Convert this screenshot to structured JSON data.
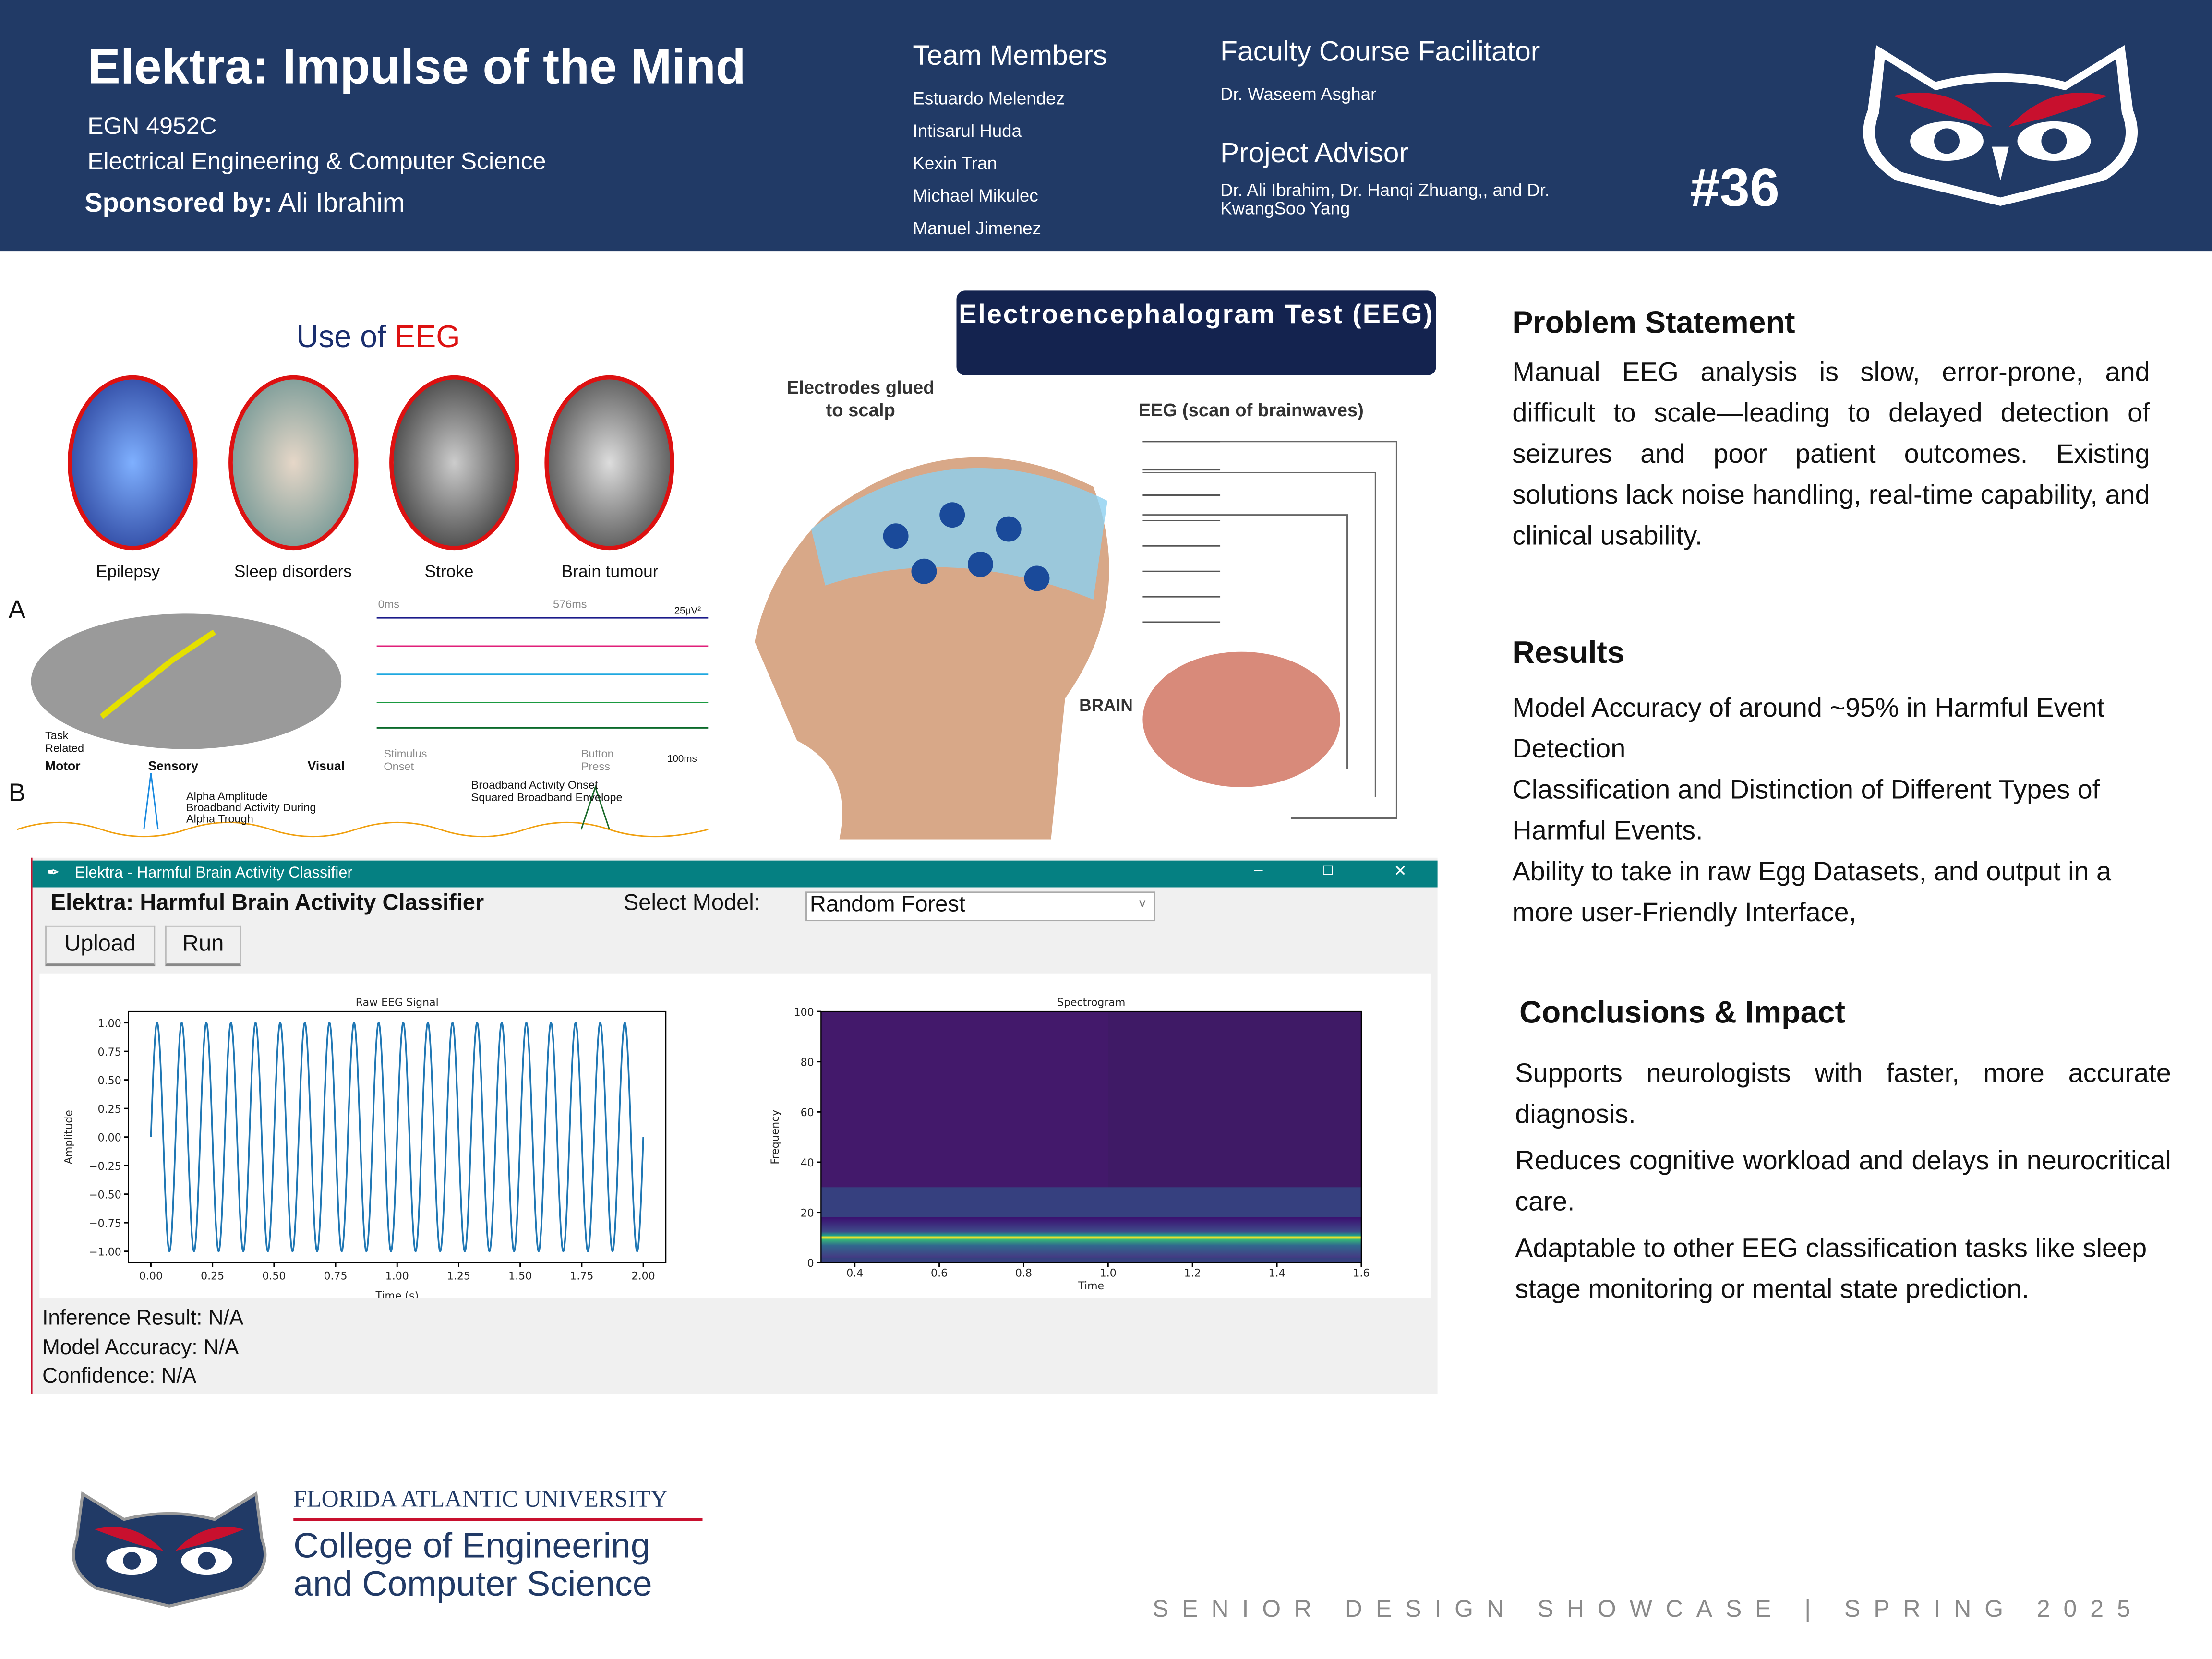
{
  "header": {
    "title": "Elektra: Impulse of the Mind",
    "course": "EGN 4952C",
    "department": "Electrical Engineering & Computer Science",
    "sponsor_label": "Sponsored by:",
    "sponsor_name": "Ali Ibrahim",
    "team_heading": "Team Members",
    "team": [
      "Estuardo Melendez",
      "Intisarul Huda",
      "Kexin Tran",
      "Michael Mikulec",
      "Manuel Jimenez"
    ],
    "facilitator_heading": "Faculty Course Facilitator",
    "facilitator": "Dr. Waseem Asghar",
    "advisor_heading": "Project Advisor",
    "advisor_line1": "Dr. Ali Ibrahim, Dr. Hanqi Zhuang,, and  Dr.",
    "advisor_line2": "KwangSoo Yang",
    "project_number": "#36",
    "bg_color": "#213a66"
  },
  "eeg_uses": {
    "title_prefix": "Use of ",
    "title_accent": "EEG",
    "items": [
      "Epilepsy",
      "Sleep disorders",
      "Stroke",
      "Brain tumour"
    ],
    "panel_a": "A",
    "panel_b": "B",
    "labels": {
      "t0": "0ms",
      "t1": "576ms",
      "scale": "25μV²",
      "stimulus": "Stimulus Onset",
      "button": "Button Press",
      "ms100": "100ms",
      "task": "Task Related",
      "motor": "Motor",
      "sensory": "Sensory",
      "visual": "Visual",
      "alpha": "Alpha Amplitude",
      "broadband": "Broadband Activity During Alpha Trough",
      "onset": "Broadband Activity Onset",
      "envelope": "Squared Broadband Envelope"
    }
  },
  "eeg_test": {
    "title": "Electroencephalogram Test (EEG)",
    "electrodes": "Electrodes glued to scalp",
    "scan": "EEG (scan of brainwaves)",
    "brain": "BRAIN"
  },
  "app": {
    "window_title": "Elektra - Harmful Brain Activity Classifier",
    "heading": "Elektra: Harmful Brain Activity Classifier",
    "select_label": "Select Model:",
    "model_value": "Random Forest",
    "upload": "Upload",
    "run": "Run",
    "inference": "Inference Result: N/A",
    "accuracy": "Model Accuracy: N/A",
    "confidence": "Confidence: N/A",
    "titlebar_color": "#058082"
  },
  "chart_data": [
    {
      "type": "line",
      "title": "Raw EEG Signal",
      "xlabel": "Time (s)",
      "ylabel": "Amplitude",
      "xlim": [
        0,
        2
      ],
      "ylim": [
        -1,
        1
      ],
      "signal": {
        "kind": "sine",
        "frequency_hz": 10,
        "amplitude": 1
      },
      "xticks": [
        "0.00",
        "0.25",
        "0.50",
        "0.75",
        "1.00",
        "1.25",
        "1.50",
        "1.75",
        "2.00"
      ],
      "yticks": [
        "1.00",
        "0.75",
        "0.50",
        "0.25",
        "0.00",
        "−0.25",
        "−0.50",
        "−0.75",
        "−1.00"
      ],
      "color": "#1f77b4"
    },
    {
      "type": "heatmap",
      "title": "Spectrogram",
      "xlabel": "Time",
      "ylabel": "Frequency",
      "xlim": [
        0.32,
        1.6
      ],
      "ylim": [
        0,
        100
      ],
      "xticks": [
        "0.4",
        "0.6",
        "0.8",
        "1.0",
        "1.2",
        "1.4",
        "1.6"
      ],
      "yticks": [
        "100",
        "80",
        "60",
        "40",
        "20",
        "0"
      ],
      "peak_frequency": 10,
      "colormap": "viridis"
    }
  ],
  "problem": {
    "title": "Problem Statement",
    "text": "Manual EEG analysis is slow, error-prone, and difficult to scale—leading to delayed detection of seizures and poor patient outcomes. Existing solutions lack noise handling, real-time capability, and clinical usability."
  },
  "results": {
    "title": "Results",
    "items": [
      "Model Accuracy of around ~95% in Harmful Event Detection",
      "Classification and Distinction of Different Types of Harmful Events.",
      "Ability to take in raw Egg Datasets, and output in a more user-Friendly Interface,"
    ]
  },
  "conclusions": {
    "title": "Conclusions & Impact",
    "items": [
      "Supports neurologists with faster, more accurate diagnosis.",
      "Reduces cognitive workload and delays in neurocritical care.",
      "Adaptable to other EEG classification tasks like sleep stage monitoring or mental state prediction."
    ]
  },
  "footer": {
    "university": "FLORIDA ATLANTIC UNIVERSITY",
    "college_line1": "College of Engineering",
    "college_line2": "and Computer Science",
    "showcase": "SENIOR DESIGN SHOWCASE | SPRING 2025"
  }
}
